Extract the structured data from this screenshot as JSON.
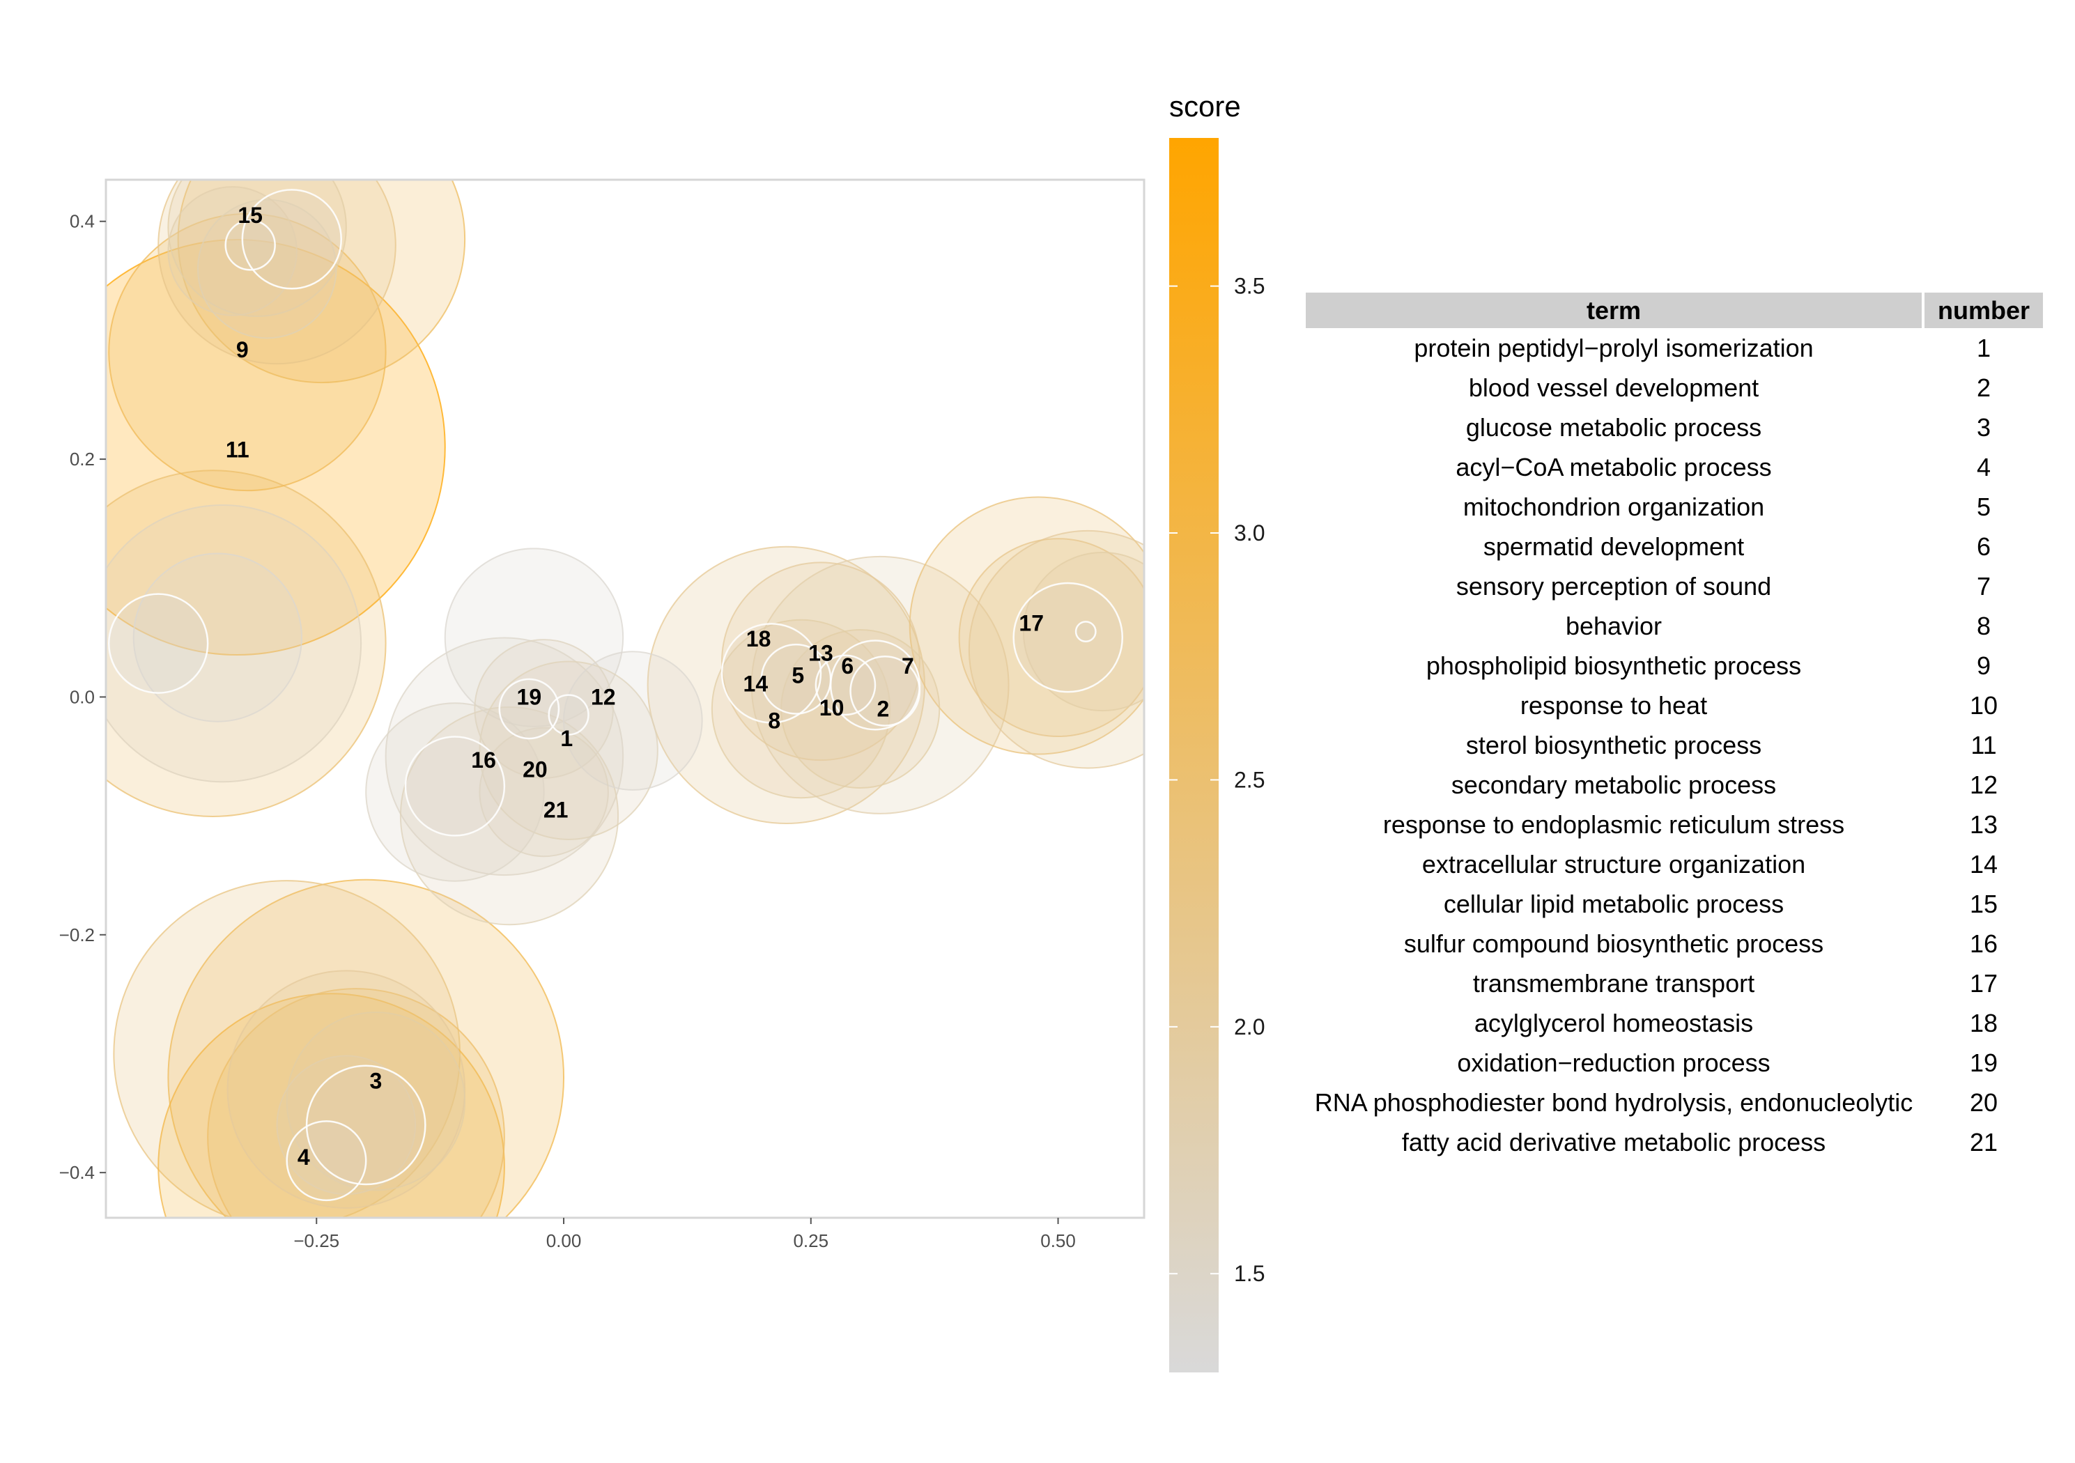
{
  "chart_data": {
    "type": "scatter",
    "title": "",
    "xlabel": "",
    "ylabel": "",
    "xlim": [
      -0.463,
      0.587
    ],
    "ylim": [
      -0.438,
      0.435
    ],
    "x_ticks": [
      -0.25,
      0.0,
      0.25,
      0.5
    ],
    "x_tick_labels": [
      "−0.25",
      "0.00",
      "0.25",
      "0.50"
    ],
    "y_ticks": [
      0.4,
      0.2,
      0.0,
      -0.2,
      -0.4
    ],
    "y_tick_labels": [
      "0.4",
      "0.2",
      "0.0",
      "−0.2",
      "−0.4"
    ],
    "grid": false,
    "color_scale": {
      "title": "score",
      "min": 1.3,
      "max": 3.8,
      "low_color": "#d9d9d9",
      "high_color": "#ffa500",
      "ticks": [
        1.5,
        2.0,
        2.5,
        3.0,
        3.5
      ],
      "tick_labels": [
        "1.5",
        "2.0",
        "2.5",
        "3.0",
        "3.5"
      ]
    },
    "circle_outline_color": "#ffffff",
    "labeled_points": [
      {
        "label": "1",
        "x": 0.003,
        "y": -0.035
      },
      {
        "label": "2",
        "x": 0.323,
        "y": -0.01
      },
      {
        "label": "3",
        "x": -0.19,
        "y": -0.323
      },
      {
        "label": "4",
        "x": -0.263,
        "y": -0.387
      },
      {
        "label": "5",
        "x": 0.237,
        "y": 0.018
      },
      {
        "label": "6",
        "x": 0.287,
        "y": 0.026
      },
      {
        "label": "7",
        "x": 0.348,
        "y": 0.026
      },
      {
        "label": "8",
        "x": 0.213,
        "y": -0.02
      },
      {
        "label": "9",
        "x": -0.325,
        "y": 0.292
      },
      {
        "label": "10",
        "x": 0.271,
        "y": -0.009
      },
      {
        "label": "11",
        "x": -0.33,
        "y": 0.208
      },
      {
        "label": "12",
        "x": 0.04,
        "y": 0.0
      },
      {
        "label": "13",
        "x": 0.26,
        "y": 0.037
      },
      {
        "label": "14",
        "x": 0.194,
        "y": 0.011
      },
      {
        "label": "15",
        "x": -0.317,
        "y": 0.405
      },
      {
        "label": "16",
        "x": -0.081,
        "y": -0.053
      },
      {
        "label": "17",
        "x": 0.473,
        "y": 0.062
      },
      {
        "label": "18",
        "x": 0.197,
        "y": 0.049
      },
      {
        "label": "19",
        "x": -0.035,
        "y": 0.0
      },
      {
        "label": "20",
        "x": -0.029,
        "y": -0.061
      },
      {
        "label": "21",
        "x": -0.008,
        "y": -0.095
      }
    ],
    "bubbles": [
      {
        "x": -0.33,
        "y": 0.21,
        "r": 0.21,
        "score": 3.8
      },
      {
        "x": -0.245,
        "y": 0.385,
        "r": 0.145,
        "score": 2.7
      },
      {
        "x": -0.32,
        "y": 0.29,
        "r": 0.14,
        "score": 2.8
      },
      {
        "x": -0.29,
        "y": 0.38,
        "r": 0.12,
        "score": 2.2
      },
      {
        "x": -0.31,
        "y": 0.395,
        "r": 0.09,
        "score": 1.9
      },
      {
        "x": -0.335,
        "y": 0.375,
        "r": 0.065,
        "score": 1.8
      },
      {
        "x": -0.3,
        "y": 0.36,
        "r": 0.07,
        "score": 1.7
      },
      {
        "x": -0.317,
        "y": 0.38,
        "r": 0.025,
        "score": 1.6
      },
      {
        "x": -0.275,
        "y": 0.385,
        "r": 0.05,
        "score": 1.7
      },
      {
        "x": -0.355,
        "y": 0.045,
        "r": 0.175,
        "score": 2.5
      },
      {
        "x": -0.345,
        "y": 0.045,
        "r": 0.14,
        "score": 1.6
      },
      {
        "x": -0.35,
        "y": 0.05,
        "r": 0.085,
        "score": 1.4
      },
      {
        "x": -0.41,
        "y": 0.045,
        "r": 0.05,
        "score": 1.3
      },
      {
        "x": -0.2,
        "y": -0.32,
        "r": 0.2,
        "score": 2.9
      },
      {
        "x": -0.28,
        "y": -0.3,
        "r": 0.175,
        "score": 2.3
      },
      {
        "x": -0.235,
        "y": -0.395,
        "r": 0.175,
        "score": 3.0
      },
      {
        "x": -0.21,
        "y": -0.37,
        "r": 0.15,
        "score": 2.6
      },
      {
        "x": -0.22,
        "y": -0.33,
        "r": 0.12,
        "score": 2.0
      },
      {
        "x": -0.19,
        "y": -0.34,
        "r": 0.09,
        "score": 1.9
      },
      {
        "x": -0.22,
        "y": -0.36,
        "r": 0.07,
        "score": 1.8
      },
      {
        "x": -0.2,
        "y": -0.36,
        "r": 0.06,
        "score": 1.7
      },
      {
        "x": -0.24,
        "y": -0.39,
        "r": 0.04,
        "score": 1.6
      },
      {
        "x": -0.03,
        "y": 0.05,
        "r": 0.09,
        "score": 1.4
      },
      {
        "x": -0.055,
        "y": -0.1,
        "r": 0.11,
        "score": 1.7
      },
      {
        "x": -0.06,
        "y": -0.05,
        "r": 0.12,
        "score": 1.5
      },
      {
        "x": 0.005,
        "y": -0.045,
        "r": 0.09,
        "score": 1.7
      },
      {
        "x": -0.02,
        "y": -0.01,
        "r": 0.07,
        "score": 1.6
      },
      {
        "x": 0.07,
        "y": -0.02,
        "r": 0.07,
        "score": 1.4
      },
      {
        "x": -0.11,
        "y": -0.08,
        "r": 0.09,
        "score": 1.5
      },
      {
        "x": -0.11,
        "y": -0.075,
        "r": 0.05,
        "score": 1.5
      },
      {
        "x": -0.02,
        "y": -0.08,
        "r": 0.065,
        "score": 1.6
      },
      {
        "x": -0.035,
        "y": -0.01,
        "r": 0.03,
        "score": 1.4
      },
      {
        "x": 0.005,
        "y": -0.015,
        "r": 0.02,
        "score": 1.4
      },
      {
        "x": 0.225,
        "y": 0.01,
        "r": 0.14,
        "score": 2.1
      },
      {
        "x": 0.32,
        "y": 0.01,
        "r": 0.13,
        "score": 1.8
      },
      {
        "x": 0.26,
        "y": 0.03,
        "r": 0.1,
        "score": 2.0
      },
      {
        "x": 0.24,
        "y": -0.01,
        "r": 0.09,
        "score": 1.9
      },
      {
        "x": 0.3,
        "y": -0.01,
        "r": 0.08,
        "score": 1.9
      },
      {
        "x": 0.21,
        "y": 0.02,
        "r": 0.05,
        "score": 1.7
      },
      {
        "x": 0.235,
        "y": 0.015,
        "r": 0.035,
        "score": 1.6
      },
      {
        "x": 0.315,
        "y": 0.01,
        "r": 0.045,
        "score": 1.6
      },
      {
        "x": 0.325,
        "y": 0.005,
        "r": 0.035,
        "score": 1.6
      },
      {
        "x": 0.285,
        "y": 0.01,
        "r": 0.03,
        "score": 1.6
      },
      {
        "x": 0.48,
        "y": 0.06,
        "r": 0.13,
        "score": 2.4
      },
      {
        "x": 0.53,
        "y": 0.04,
        "r": 0.12,
        "score": 2.0
      },
      {
        "x": 0.5,
        "y": 0.05,
        "r": 0.1,
        "score": 2.2
      },
      {
        "x": 0.545,
        "y": 0.055,
        "r": 0.08,
        "score": 1.9
      },
      {
        "x": 0.51,
        "y": 0.05,
        "r": 0.055,
        "score": 1.7
      },
      {
        "x": 0.528,
        "y": 0.055,
        "r": 0.01,
        "score": 1.5
      }
    ]
  },
  "table": {
    "headers": [
      "term",
      "number"
    ],
    "rows": [
      [
        "protein peptidyl−prolyl isomerization",
        "1"
      ],
      [
        "blood vessel development",
        "2"
      ],
      [
        "glucose metabolic process",
        "3"
      ],
      [
        "acyl−CoA metabolic process",
        "4"
      ],
      [
        "mitochondrion organization",
        "5"
      ],
      [
        "spermatid development",
        "6"
      ],
      [
        "sensory perception of sound",
        "7"
      ],
      [
        "behavior",
        "8"
      ],
      [
        "phospholipid biosynthetic process",
        "9"
      ],
      [
        "response to heat",
        "10"
      ],
      [
        "sterol biosynthetic process",
        "11"
      ],
      [
        "secondary metabolic process",
        "12"
      ],
      [
        "response to endoplasmic reticulum stress",
        "13"
      ],
      [
        "extracellular structure organization",
        "14"
      ],
      [
        "cellular lipid metabolic process",
        "15"
      ],
      [
        "sulfur compound biosynthetic process",
        "16"
      ],
      [
        "transmembrane transport",
        "17"
      ],
      [
        "acylglycerol homeostasis",
        "18"
      ],
      [
        "oxidation−reduction process",
        "19"
      ],
      [
        "RNA phosphodiester bond hydrolysis, endonucleolytic",
        "20"
      ],
      [
        "fatty acid derivative metabolic process",
        "21"
      ]
    ]
  }
}
